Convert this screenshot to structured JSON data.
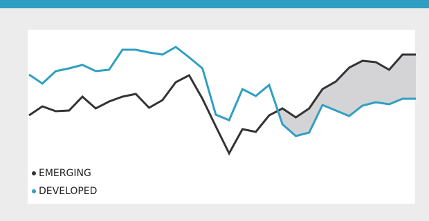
{
  "chart_data": {
    "type": "line",
    "series": [
      {
        "name": "EMERGING",
        "color": "#333333",
        "values": [
          73,
          86,
          79,
          80,
          100,
          83,
          93,
          100,
          104,
          84,
          95,
          121,
          131,
          97,
          57,
          18,
          53,
          49,
          73,
          83,
          70,
          83,
          111,
          122,
          142,
          152,
          150,
          139,
          161,
          161
        ]
      },
      {
        "name": "DEVELOPED",
        "color": "#2f9fc1",
        "values": [
          132,
          119,
          137,
          141,
          146,
          137,
          139,
          168,
          168,
          164,
          161,
          172,
          157,
          141,
          74,
          66,
          111,
          101,
          117,
          60,
          43,
          48,
          88,
          80,
          72,
          87,
          92,
          89,
          97,
          97
        ]
      }
    ],
    "ylim": [
      0,
      200
    ],
    "fill_between_color": "#d4d3d5",
    "legend": "bottom-left"
  }
}
